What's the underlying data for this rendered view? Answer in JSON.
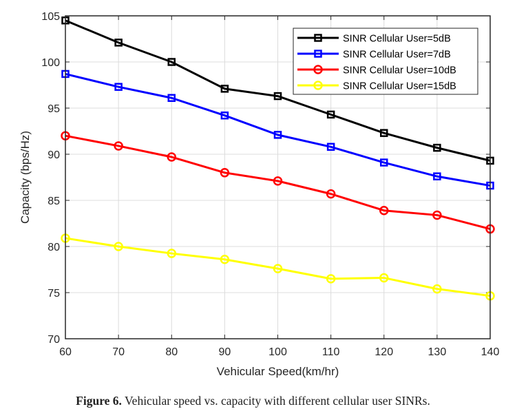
{
  "chart_data": {
    "type": "line",
    "title": "",
    "xlabel": "Vehicular Speed(km/hr)",
    "ylabel": "Capacity (bps/Hz)",
    "x": [
      60,
      70,
      80,
      90,
      100,
      110,
      120,
      130,
      140
    ],
    "xlim": [
      60,
      140
    ],
    "ylim": [
      70,
      105
    ],
    "xticks": [
      "60",
      "70",
      "80",
      "90",
      "100",
      "110",
      "120",
      "130",
      "140"
    ],
    "yticks": [
      "70",
      "75",
      "80",
      "85",
      "90",
      "95",
      "100",
      "105"
    ],
    "grid": true,
    "legend_position": "top-right",
    "series": [
      {
        "name": "SINR Cellular User=5dB",
        "color": "#000000",
        "marker": "square",
        "values": [
          104.5,
          102.1,
          100.0,
          97.1,
          96.3,
          94.3,
          92.3,
          90.7,
          89.3
        ]
      },
      {
        "name": "SINR Cellular User=7dB",
        "color": "#0000ff",
        "marker": "square",
        "values": [
          98.7,
          97.3,
          96.1,
          94.2,
          92.1,
          90.8,
          89.1,
          87.6,
          86.6
        ]
      },
      {
        "name": "SINR Cellular User=10dB",
        "color": "#ff0000",
        "marker": "circle",
        "values": [
          92.0,
          90.9,
          89.7,
          88.0,
          87.1,
          85.7,
          83.9,
          83.4,
          81.9
        ]
      },
      {
        "name": "SINR Cellular User=15dB",
        "color": "#ffff00",
        "marker": "circle",
        "values": [
          80.9,
          80.0,
          79.25,
          78.6,
          77.6,
          76.5,
          76.6,
          75.4,
          74.65
        ]
      }
    ]
  },
  "caption": {
    "label": "Figure 6.",
    "text": " Vehicular speed vs. capacity with different cellular user SINRs."
  }
}
